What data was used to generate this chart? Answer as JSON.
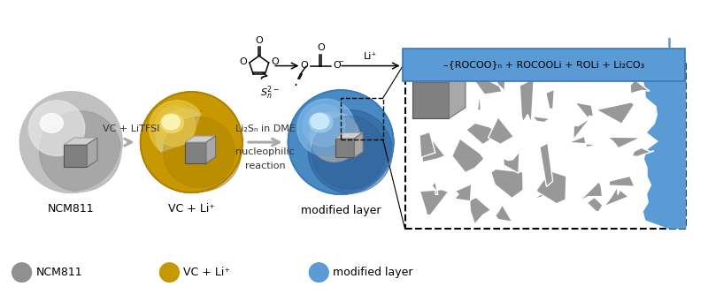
{
  "bg_color": "#ffffff",
  "sphere1_color": "#b8b8b8",
  "sphere2_color": "#d4aa00",
  "sphere3_color": "#5b9bd5",
  "cube_top": "#d0d0d0",
  "cube_front": "#808080",
  "cube_side": "#a0a0a0",
  "arrow_color": "#aaaaaa",
  "box_color": "#5b9bd5",
  "box_text": "–{ROCOO}ₙ + ROCOOLi + ROLi + Li₂CO₃",
  "label1": "NCM811",
  "label2": "VC + Li⁺",
  "label3": "modified layer",
  "arrow1_label": "VC + LiTFSI",
  "arrow2_label1": "Li₂Sₙ in DME",
  "arrow2_label2": "nucleophilic",
  "arrow2_label3": "reaction",
  "li_plus_label": "Li⁺",
  "dashed_arrow_color": "#5b9bd5",
  "crack_color": "#909090",
  "crack_edge": "#ffffff"
}
